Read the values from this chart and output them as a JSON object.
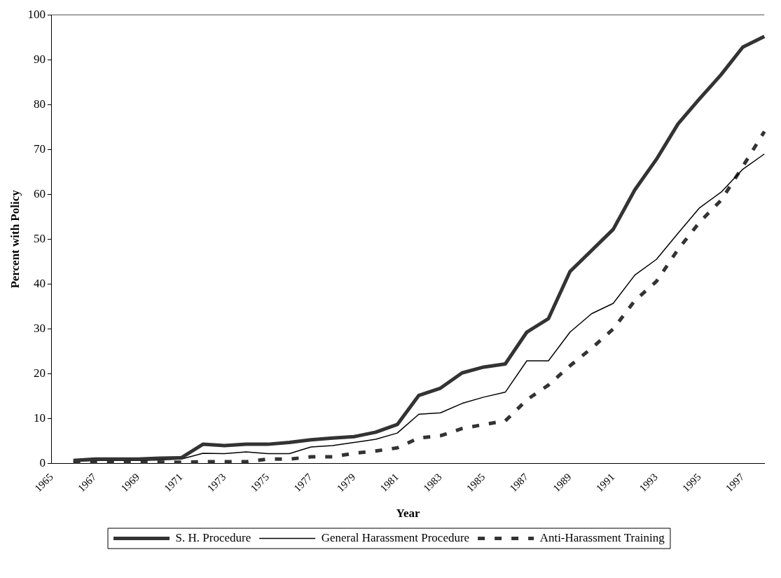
{
  "chart_data": {
    "type": "line",
    "xlabel": "Year",
    "ylabel": "Percent with Policy",
    "categories": [
      "1965",
      null,
      "1967",
      null,
      "1969",
      null,
      "1971",
      null,
      "1973",
      null,
      "1975",
      null,
      "1977",
      null,
      "1979",
      null,
      "1981",
      null,
      "1983",
      null,
      "1985",
      null,
      "1987",
      null,
      "1989",
      null,
      "1991",
      null,
      "1993",
      null,
      "1995",
      null,
      "1997",
      null
    ],
    "series": [
      {
        "name": "S. H. Procedure",
        "color": "#333333",
        "line_style": "solid",
        "values": [
          null,
          0.7,
          1.0,
          1.0,
          1.0,
          1.2,
          1.3,
          4.3,
          4.0,
          4.3,
          4.3,
          4.7,
          5.3,
          5.7,
          6.0,
          7.0,
          8.7,
          15.2,
          16.8,
          20.2,
          21.5,
          22.2,
          29.3,
          32.3,
          42.8,
          47.5,
          52.2,
          61.0,
          67.8,
          75.7,
          81.3,
          86.7,
          92.8,
          95.2
        ]
      },
      {
        "name": "General Harassment Procedure",
        "color": "#000000",
        "line_style": "solid",
        "values": [
          null,
          0.5,
          0.7,
          0.7,
          0.7,
          0.8,
          1.0,
          2.3,
          2.2,
          2.6,
          2.2,
          2.2,
          3.7,
          4.0,
          4.7,
          5.4,
          6.8,
          11.0,
          11.3,
          13.4,
          14.8,
          15.9,
          22.9,
          22.9,
          29.3,
          33.4,
          35.7,
          42.0,
          45.5,
          51.3,
          57.0,
          60.5,
          65.6,
          69.0
        ]
      },
      {
        "name": "Anti-Harassment Training",
        "color": "#333333",
        "line_style": "dashed",
        "values": [
          null,
          0.2,
          0.3,
          0.3,
          0.3,
          0.3,
          0.3,
          0.4,
          0.4,
          0.4,
          1.0,
          1.0,
          1.5,
          1.5,
          2.3,
          2.8,
          3.5,
          5.7,
          6.2,
          7.8,
          8.7,
          9.5,
          14.2,
          17.5,
          21.8,
          25.7,
          30.0,
          36.3,
          40.6,
          47.7,
          53.8,
          58.7,
          66.2,
          74.0
        ]
      }
    ],
    "ylim": [
      0,
      100
    ],
    "yticks": [
      0,
      10,
      20,
      30,
      40,
      50,
      60,
      70,
      80,
      90,
      100
    ],
    "grid": false,
    "legend": "bottom",
    "marker": "none"
  }
}
